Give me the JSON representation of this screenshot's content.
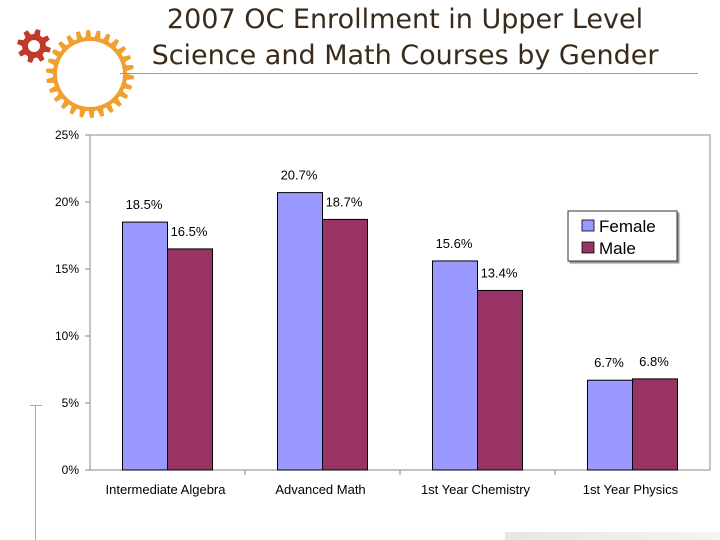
{
  "slide": {
    "title_line1": "2007 OC Enrollment in Upper Level",
    "title_line2": "Science and Math Courses by Gender"
  },
  "colors": {
    "female": "#9999ff",
    "male": "#993366",
    "plot_bg": "#ffffff",
    "accent": "#f0a030"
  },
  "chart_data": {
    "type": "bar",
    "title": "2007 OC Enrollment in Upper Level Science and Math Courses by Gender",
    "categories": [
      "Intermediate Algebra",
      "Advanced Math",
      "1st Year Chemistry",
      "1st Year Physics"
    ],
    "series": [
      {
        "name": "Female",
        "values": [
          18.5,
          20.7,
          15.6,
          6.7
        ],
        "labels": [
          "18.5%",
          "20.7%",
          "15.6%",
          "6.7%"
        ]
      },
      {
        "name": "Male",
        "values": [
          16.5,
          18.7,
          13.4,
          6.8
        ],
        "labels": [
          "16.5%",
          "18.7%",
          "13.4%",
          "6.8%"
        ]
      }
    ],
    "ylim": [
      0,
      25
    ],
    "yticks": [
      0,
      5,
      10,
      15,
      20,
      25
    ],
    "ytick_labels": [
      "0%",
      "5%",
      "10%",
      "15%",
      "20%",
      "25%"
    ],
    "xlabel": "",
    "ylabel": "",
    "legend": [
      "Female",
      "Male"
    ],
    "legend_position": "right",
    "grid": false
  }
}
